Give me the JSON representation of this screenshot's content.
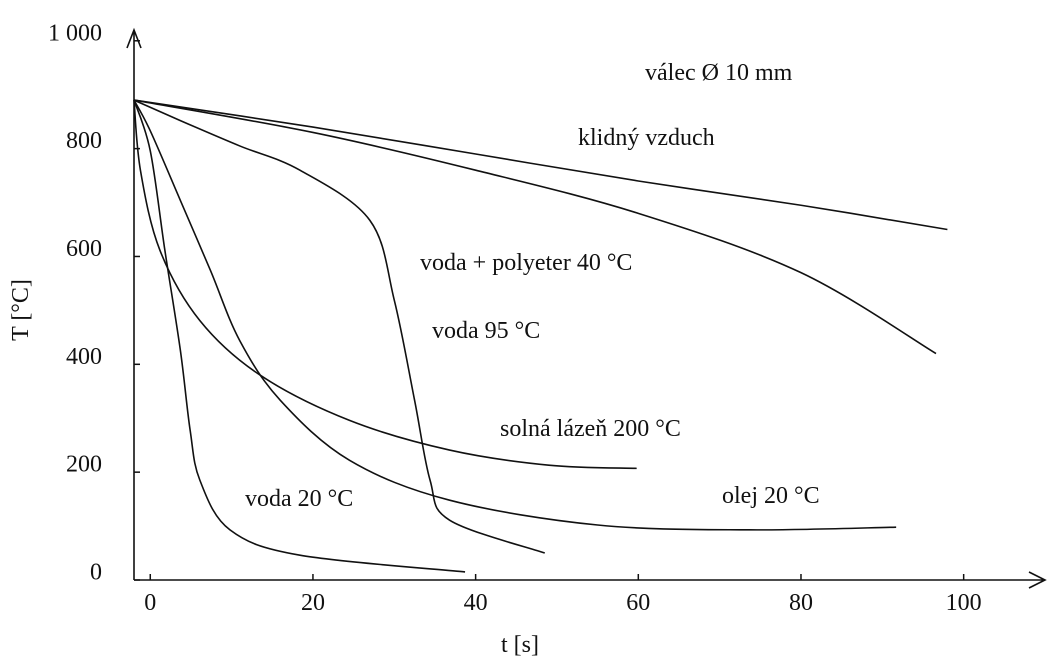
{
  "chart_data": {
    "type": "line",
    "title": "válec Ø 10 mm",
    "xlabel": "t [s]",
    "ylabel": "T [°C]",
    "xlim": [
      -2,
      110
    ],
    "ylim": [
      0,
      1020
    ],
    "xticks": [
      0,
      20,
      40,
      60,
      80,
      100
    ],
    "yticks": [
      0,
      200,
      400,
      600,
      800,
      {
        "value": 1000,
        "label": "1 000"
      }
    ],
    "color": "#111111",
    "series": [
      {
        "name": "klidný vzduch",
        "x": [
          -2,
          20,
          40,
          60,
          80,
          98
        ],
        "values": [
          890,
          840,
          790,
          740,
          695,
          650
        ]
      },
      {
        "name": "voda + polyeter 40 °C",
        "x": [
          -2,
          20,
          40,
          60,
          80,
          96.6
        ],
        "values": [
          890,
          830,
          760,
          680,
          570,
          420
        ]
      },
      {
        "name": "voda 95 °C",
        "x": [
          -2,
          3.7,
          11,
          18.4,
          27,
          30,
          32.5,
          34.4,
          36.8,
          48.5
        ],
        "values": [
          890,
          852,
          805,
          760,
          667,
          519,
          333,
          185,
          111,
          50
        ]
      },
      {
        "name": "solná lázeň 200 °C",
        "x": [
          -2,
          -1.2,
          1.2,
          6.1,
          13.5,
          24.5,
          36.8,
          49,
          59.8
        ],
        "values": [
          890,
          759,
          611,
          481,
          380,
          296,
          241,
          213,
          207
        ]
      },
      {
        "name": "olej 20 °C",
        "x": [
          -2,
          0,
          3.7,
          7.4,
          11,
          16,
          24.5,
          36.8,
          55,
          73.6,
          91.7
        ],
        "values": [
          890,
          833,
          704,
          574,
          444,
          333,
          222,
          148,
          102,
          93,
          98
        ]
      },
      {
        "name": "voda 20 °C",
        "x": [
          -2,
          0,
          1.8,
          3.7,
          4.9,
          6.1,
          9.8,
          18.4,
          38.7
        ],
        "values": [
          890,
          796,
          611,
          426,
          278,
          185,
          93,
          46,
          15
        ]
      }
    ]
  }
}
